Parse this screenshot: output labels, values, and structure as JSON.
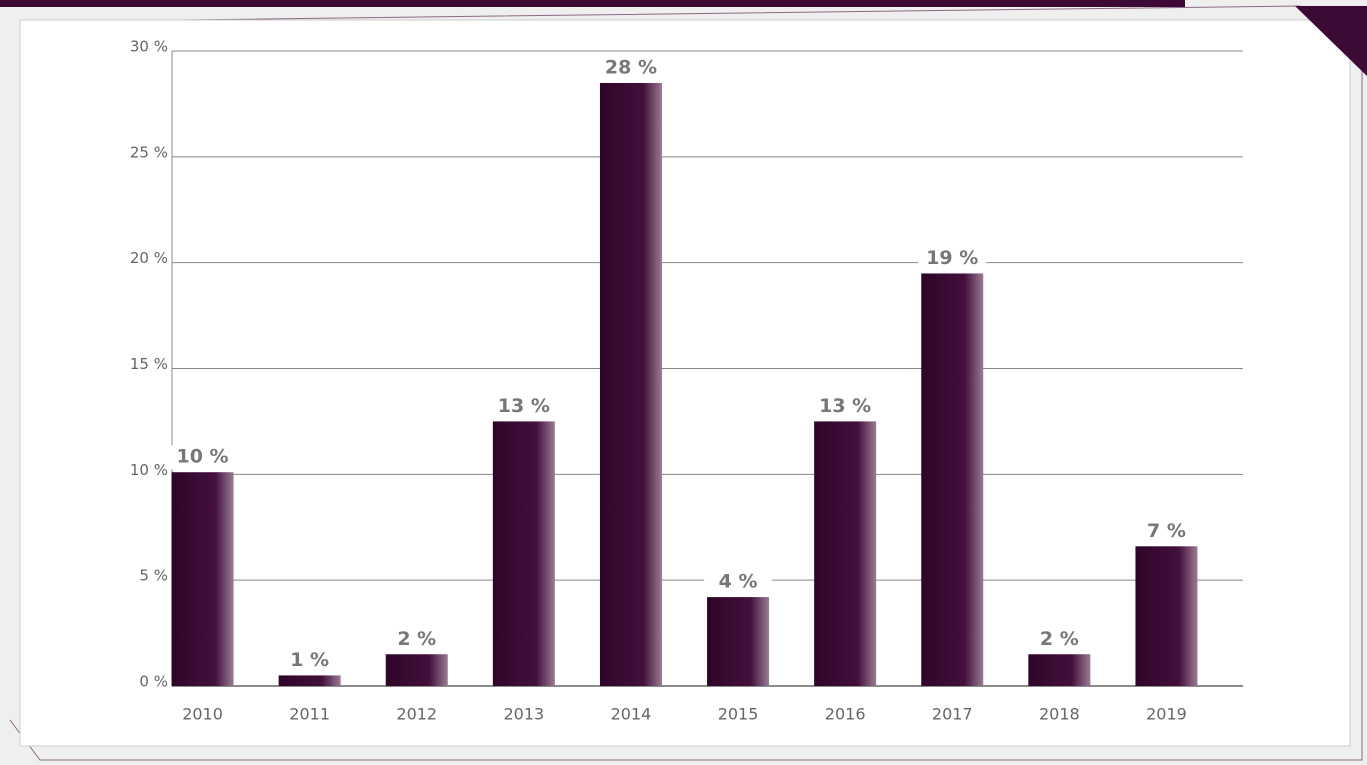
{
  "chart_data": {
    "type": "bar",
    "categories": [
      "2010",
      "2011",
      "2012",
      "2013",
      "2014",
      "2015",
      "2016",
      "2017",
      "2018",
      "2019"
    ],
    "values": [
      10.1,
      0.5,
      1.5,
      12.5,
      28.49,
      4.2,
      12.5,
      19.49,
      1.5,
      6.6
    ],
    "value_labels": [
      "10 %",
      "1 %",
      "2 %",
      "13 %",
      "28 %",
      "4 %",
      "13 %",
      "19 %",
      "2 %",
      "7 %"
    ],
    "color": "#3d0a35",
    "ylim": [
      0,
      30
    ],
    "yticks": [
      {
        "value": 0,
        "label": "0 %"
      },
      {
        "value": 5,
        "label": "5 %"
      },
      {
        "value": 10,
        "label": "10 %"
      },
      {
        "value": 15,
        "label": "15 %"
      },
      {
        "value": 20,
        "label": "20 %"
      },
      {
        "value": 25,
        "label": "25 %"
      },
      {
        "value": 30,
        "label": "30 %"
      }
    ],
    "grid": true
  }
}
